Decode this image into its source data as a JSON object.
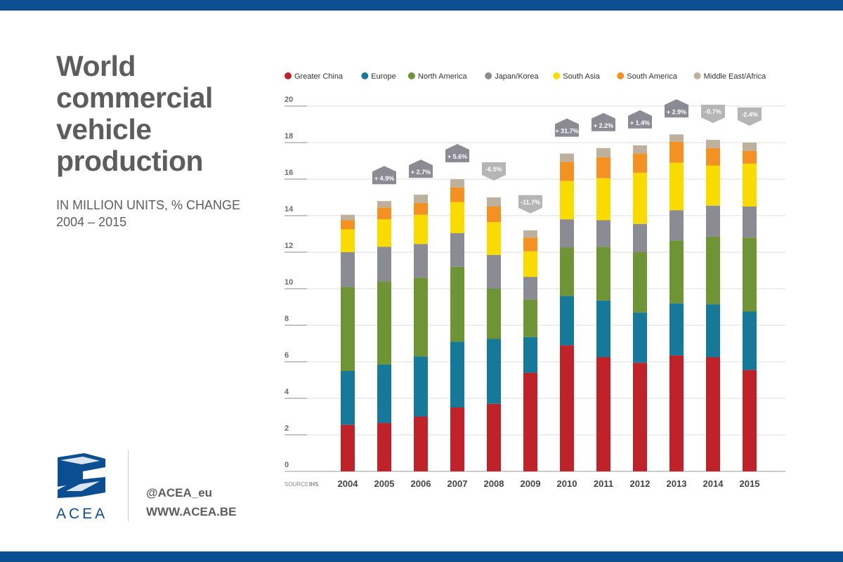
{
  "page": {
    "title": "World commercial vehicle production",
    "subtitle_line1": "IN MILLION UNITS, % CHANGE",
    "subtitle_line2": "2004 – 2015",
    "logo_text": "ACEA",
    "twitter": "@ACEA_eu",
    "website": "WWW.ACEA.BE",
    "source_label": "SOURCE:",
    "source_value": "IHS",
    "brand_color": "#0b4f92"
  },
  "chart_data": {
    "type": "bar",
    "stacked": true,
    "title": "World commercial vehicle production",
    "ylim": [
      0,
      20
    ],
    "yticks": [
      0,
      2,
      4,
      6,
      8,
      10,
      12,
      14,
      16,
      18,
      20
    ],
    "grid": true,
    "legend_position": "top",
    "categories": [
      "2004",
      "2005",
      "2006",
      "2007",
      "2008",
      "2009",
      "2010",
      "2011",
      "2012",
      "2013",
      "2014",
      "2015"
    ],
    "series": [
      {
        "name": "Greater China",
        "color": "#bf2229",
        "values": [
          2.55,
          2.65,
          3.0,
          3.5,
          3.7,
          5.4,
          6.9,
          6.25,
          5.95,
          6.35,
          6.25,
          5.55
        ]
      },
      {
        "name": "Europe",
        "color": "#17799a",
        "values": [
          0,
          0,
          0,
          0,
          0,
          0,
          0,
          0,
          0,
          0,
          0,
          0
        ]
      },
      {
        "name": "North America",
        "color": "#6f9436",
        "values": [
          4.6,
          4.55,
          4.3,
          4.1,
          2.75,
          2.05,
          2.65,
          2.95,
          3.3,
          3.45,
          3.7,
          4.05
        ]
      },
      {
        "name": "Japan/Korea",
        "color": "#8b8b93",
        "values": [
          0,
          0,
          0,
          0,
          0,
          0,
          0,
          0,
          0,
          0,
          0,
          0
        ]
      },
      {
        "name": "South Asia",
        "color": "#f9db00",
        "values": [
          1.25,
          1.5,
          1.6,
          1.7,
          1.8,
          1.4,
          2.1,
          2.3,
          2.8,
          2.6,
          2.2,
          2.35
        ]
      },
      {
        "name": "South America",
        "color": "#f39223",
        "values": [
          0.5,
          0.65,
          0.65,
          0.8,
          0.85,
          0.75,
          1.05,
          1.15,
          1.05,
          1.15,
          0.95,
          0.7
        ]
      },
      {
        "name": "Middle East/Africa",
        "color": "#bdb19d",
        "values": [
          0.3,
          0.35,
          0.45,
          0.45,
          0.5,
          0.4,
          0.45,
          0.5,
          0.45,
          0.4,
          0.45,
          0.45
        ]
      }
    ],
    "series_fix": {
      "Europe": [
        2.95,
        3.2,
        3.3,
        3.6,
        3.55,
        1.95,
        2.7,
        3.1,
        2.75,
        2.85,
        2.9,
        3.2
      ],
      "Japan/Korea": [
        1.9,
        1.9,
        1.85,
        1.85,
        1.85,
        1.25,
        1.55,
        1.45,
        1.55,
        1.65,
        1.7,
        1.7
      ]
    },
    "changes": [
      "",
      "+ 4.9%",
      "+ 2.7%",
      "+ 5.6%",
      "-6.5%",
      "-11.7%",
      "+ 31.7%",
      "+ 2.2%",
      "+ 1.4%",
      "+ 2.9%",
      "-0.7%",
      "-2.4%"
    ],
    "change_colors": {
      "up": "#8b8b93",
      "down": "#b5b5b5"
    }
  }
}
